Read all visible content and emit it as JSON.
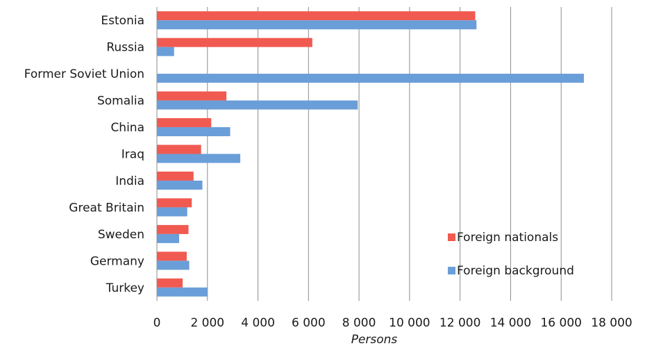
{
  "chart_data": {
    "type": "bar",
    "orientation": "horizontal",
    "categories": [
      "Estonia",
      "Russia",
      "Former Soviet Union",
      "Somalia",
      "China",
      "Iraq",
      "India",
      "Great Britain",
      "Sweden",
      "Germany",
      "Turkey"
    ],
    "series": [
      {
        "name": "Foreign nationals",
        "color": "#f05a50",
        "values": [
          12600,
          6150,
          0,
          2750,
          2150,
          1750,
          1450,
          1380,
          1250,
          1180,
          1020
        ]
      },
      {
        "name": "Foreign background",
        "color": "#6a9ed8",
        "values": [
          12650,
          680,
          16900,
          7950,
          2900,
          3300,
          1800,
          1200,
          880,
          1280,
          2000
        ]
      }
    ],
    "xlabel": "Persons",
    "xlim": [
      0,
      18000
    ],
    "xticks": [
      0,
      2000,
      4000,
      6000,
      8000,
      10000,
      12000,
      14000,
      16000,
      18000
    ],
    "xtick_labels": [
      "0",
      "2 000",
      "4 000",
      "6 000",
      "8 000",
      "10 000",
      "12 000",
      "14 000",
      "16 000",
      "18 000"
    ],
    "grid": "vertical",
    "legend_position": "bottom-right"
  }
}
